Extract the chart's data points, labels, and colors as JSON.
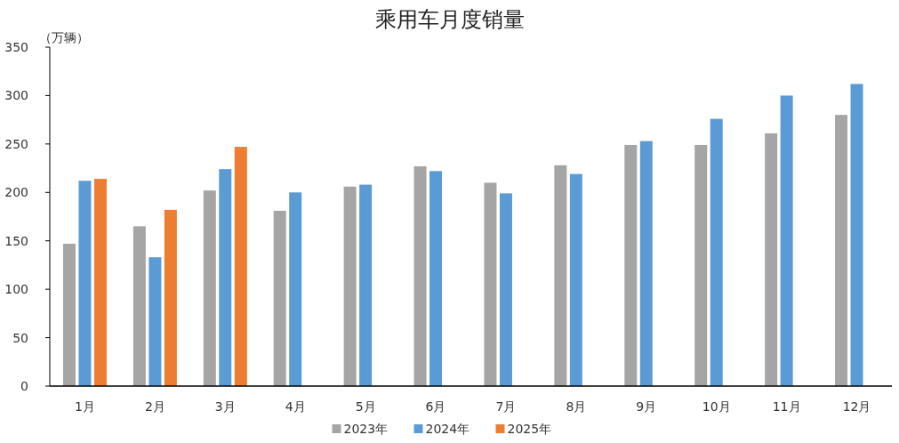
{
  "chart_data": {
    "type": "bar",
    "title": "乘用车月度销量",
    "ylabel": "（万辆）",
    "categories": [
      "1月",
      "2月",
      "3月",
      "4月",
      "5月",
      "6月",
      "7月",
      "8月",
      "9月",
      "10月",
      "11月",
      "12月"
    ],
    "series": [
      {
        "name": "2023年",
        "color": "#a5a5a5",
        "values": [
          147,
          165,
          202,
          181,
          206,
          227,
          210,
          228,
          249,
          249,
          261,
          280
        ]
      },
      {
        "name": "2024年",
        "color": "#5b9bd5",
        "values": [
          212,
          133,
          224,
          200,
          208,
          222,
          199,
          219,
          253,
          276,
          300,
          312
        ]
      },
      {
        "name": "2025年",
        "color": "#ed7d31",
        "values": [
          214,
          182,
          247,
          null,
          null,
          null,
          null,
          null,
          null,
          null,
          null,
          null
        ]
      }
    ],
    "ylim": [
      0,
      350
    ],
    "yticks": [
      0,
      50,
      100,
      150,
      200,
      250,
      300,
      350
    ],
    "grid": false,
    "legend": "bottom"
  }
}
